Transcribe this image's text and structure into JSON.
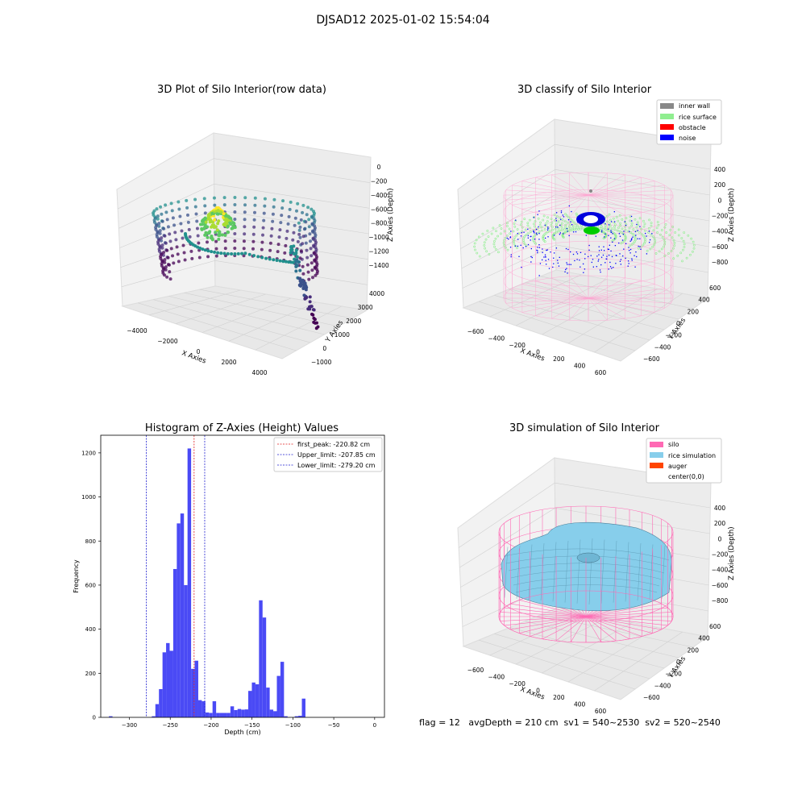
{
  "suptitle": "DJSAD12 2025-01-02 15:54:04",
  "footer": "flag = 12   avgDepth = 210 cm  sv1 = 540~2530  sv2 = 520~2540",
  "colors": {
    "histogram": "#4a4af5",
    "peak": "#e02020",
    "limit": "#2020d0",
    "wall": "#888888",
    "rice_surface": "#90ee90",
    "obstacle": "#ff0000",
    "noise": "#0000ff",
    "silo": "#ff69b4",
    "rice_sim": "#87ceeb",
    "auger": "#ff4500"
  },
  "chart_data": [
    {
      "type": "scatter",
      "subtype": "3d",
      "title": "3D Plot of Silo Interior(row data)",
      "xlabel": "X Axies",
      "ylabel": "Y Axies",
      "zlabel": "Z Axies (Depth)",
      "x_ticks": [
        "−4000",
        "−2000",
        "0",
        "2000",
        "4000"
      ],
      "y_ticks": [
        "−1000",
        "0",
        "1000",
        "2000",
        "3000",
        "4000"
      ],
      "z_ticks": [
        "0",
        "−200",
        "−400",
        "−600",
        "−800",
        "−1000",
        "−1200",
        "−1400"
      ],
      "colormap": "viridis"
    },
    {
      "type": "scatter",
      "subtype": "3d",
      "title": "3D classify of Silo Interior",
      "xlabel": "X Axies",
      "ylabel": "Y Axies",
      "zlabel": "Z Axies (Depth)",
      "x_ticks": [
        "−600",
        "−400",
        "−200",
        "0",
        "200",
        "400",
        "600"
      ],
      "y_ticks": [
        "−600",
        "−400",
        "−200",
        "0",
        "200",
        "400",
        "600"
      ],
      "z_ticks": [
        "400",
        "200",
        "0",
        "−200",
        "−400",
        "−600",
        "−800"
      ],
      "legend": [
        "inner wall",
        "rice surface",
        "obstacle",
        "noise"
      ],
      "legend_position": "top-right"
    },
    {
      "type": "bar",
      "subtype": "histogram",
      "title": "Histogram of Z-Axies (Height) Values",
      "xlabel": "Depth (cm)",
      "ylabel": "Frequency",
      "xlim": [
        -335,
        12
      ],
      "ylim": [
        0,
        1280
      ],
      "x_ticks": [
        -300,
        -250,
        -200,
        -150,
        -100,
        -50,
        0
      ],
      "x_tick_labels": [
        "−300",
        "−250",
        "−200",
        "−150",
        "−100",
        "−50",
        "0"
      ],
      "y_ticks": [
        0,
        200,
        400,
        600,
        800,
        1000,
        1200
      ],
      "bin_width": 4.37,
      "bins_start": -325,
      "values": [
        5,
        0,
        0,
        0,
        0,
        0,
        0,
        0,
        0,
        0,
        0,
        0,
        5,
        60,
        128,
        295,
        337,
        302,
        673,
        880,
        925,
        600,
        1220,
        220,
        257,
        78,
        73,
        22,
        20,
        73,
        20,
        20,
        20,
        20,
        50,
        33,
        38,
        35,
        36,
        120,
        158,
        150,
        531,
        453,
        135,
        35,
        28,
        188,
        252,
        5,
        0,
        0,
        5,
        7,
        85
      ],
      "reference_lines": [
        {
          "label": "first_peak: -220.82 cm",
          "x": -220.82,
          "color": "red"
        },
        {
          "label": "Upper_limit: -207.85 cm",
          "x": -207.85,
          "color": "blue"
        },
        {
          "label": "Lower_limit: -279.20 cm",
          "x": -279.2,
          "color": "blue"
        }
      ],
      "legend_position": "top-right"
    },
    {
      "type": "area",
      "subtype": "3d surface",
      "title": "3D simulation of Silo Interior",
      "xlabel": "X Axies",
      "ylabel": "Y Axies",
      "zlabel": "Z Axies (Depth)",
      "x_ticks": [
        "−600",
        "−400",
        "−200",
        "0",
        "200",
        "400",
        "600"
      ],
      "y_ticks": [
        "−600",
        "−400",
        "−200",
        "0",
        "200",
        "400",
        "600"
      ],
      "z_ticks": [
        "400",
        "200",
        "0",
        "−200",
        "−400",
        "−600",
        "−800"
      ],
      "legend": [
        "silo",
        "rice simulation",
        "auger",
        "center(0,0)"
      ],
      "legend_position": "top-right"
    }
  ]
}
